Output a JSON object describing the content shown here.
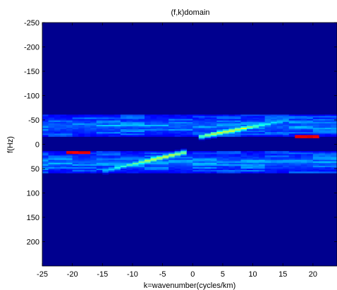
{
  "chart_data": {
    "type": "heatmap",
    "title": "(f,k)domain",
    "xlabel": "k=wavenumber(cycles/km)",
    "ylabel": "f(Hz)",
    "xlim": [
      -25,
      24
    ],
    "ylim": [
      -250,
      250
    ],
    "y_reversed": true,
    "colormap": "jet",
    "background_color": "#00008f",
    "xticks": [
      -25,
      -20,
      -15,
      -10,
      -5,
      0,
      5,
      10,
      15,
      20
    ],
    "yticks": [
      -250,
      -200,
      -150,
      -100,
      -50,
      0,
      50,
      100,
      150,
      200
    ],
    "bands": [
      {
        "f_min": -60,
        "f_max": -15,
        "k_min": -25,
        "k_max": 24
      },
      {
        "f_min": 15,
        "f_max": 60,
        "k_min": -25,
        "k_max": 24
      }
    ],
    "ridges": [
      {
        "k_start": 1,
        "k_end": 16,
        "f_start": -15,
        "f_end": -50,
        "peak_k": 6,
        "peak_f": -27
      },
      {
        "k_start": -15,
        "k_end": -1,
        "f_start": 55,
        "f_end": 16,
        "peak_k": -5,
        "peak_f": 25
      }
    ],
    "hot_spots": [
      {
        "k": -19,
        "f": 16
      },
      {
        "k": 19,
        "f": -16
      }
    ]
  }
}
